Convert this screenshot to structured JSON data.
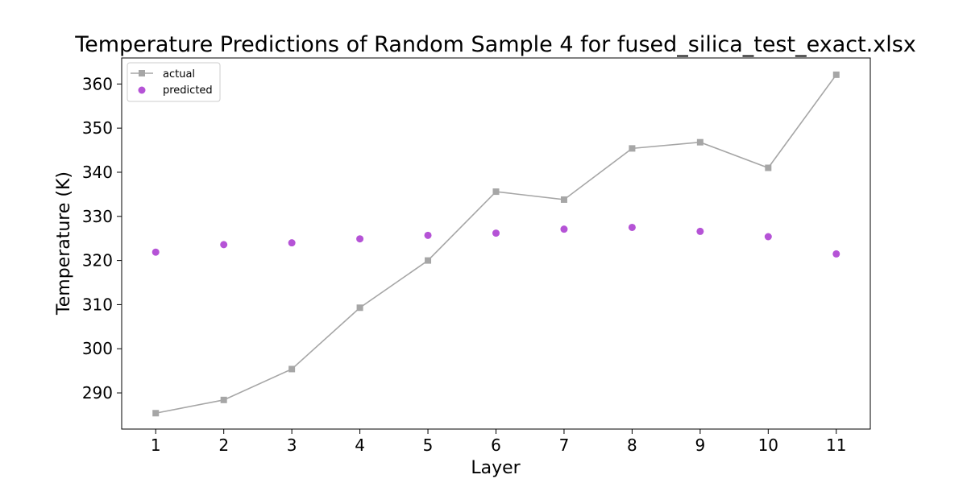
{
  "chart_data": {
    "type": "line",
    "title": "Temperature Predictions of Random Sample 4 for fused_silica_test_exact.xlsx",
    "xlabel": "Layer",
    "ylabel": "Temperature (K)",
    "x": [
      1,
      2,
      3,
      4,
      5,
      6,
      7,
      8,
      9,
      10,
      11
    ],
    "xticks": [
      "1",
      "2",
      "3",
      "4",
      "5",
      "6",
      "7",
      "8",
      "9",
      "10",
      "11"
    ],
    "yticks": [
      "290",
      "300",
      "310",
      "320",
      "330",
      "340",
      "350",
      "360"
    ],
    "xlim": [
      0.5,
      11.5
    ],
    "ylim": [
      281.8,
      365.9
    ],
    "grid": false,
    "legend_position": "top-left",
    "series": [
      {
        "name": "actual",
        "style": "line-square-marker",
        "color": "#a6a6a6",
        "values": [
          285.4,
          288.4,
          295.4,
          309.3,
          320.0,
          335.6,
          333.8,
          345.4,
          346.8,
          341.0,
          362.1
        ]
      },
      {
        "name": "predicted",
        "style": "scatter-circle-marker",
        "color": "#b553d6",
        "values": [
          321.9,
          323.6,
          324.0,
          324.9,
          325.7,
          326.2,
          327.1,
          327.5,
          326.6,
          325.4,
          321.5
        ]
      }
    ]
  }
}
